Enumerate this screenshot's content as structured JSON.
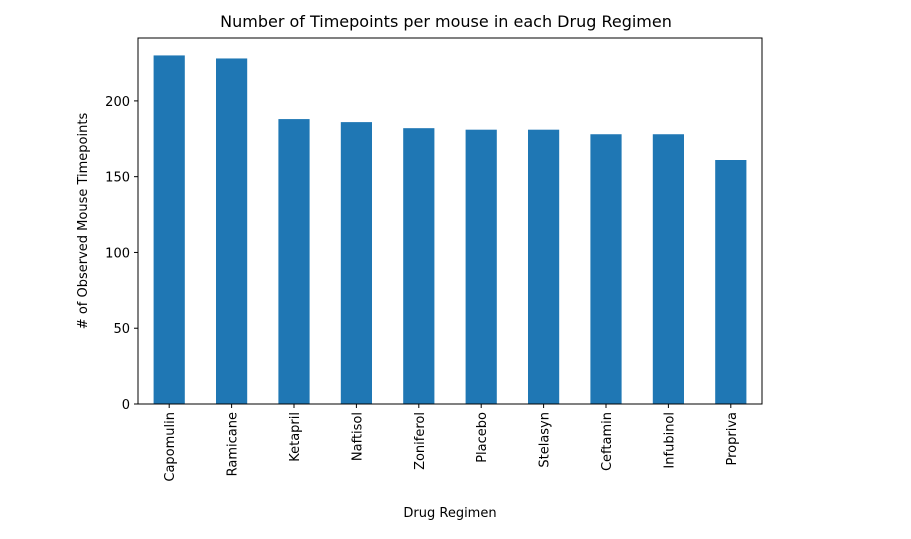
{
  "chart_data": {
    "type": "bar",
    "title": "Number of Timepoints per mouse in each Drug Regimen",
    "xlabel": "Drug Regimen",
    "ylabel": "# of Observed Mouse Timepoints",
    "categories": [
      "Capomulin",
      "Ramicane",
      "Ketapril",
      "Naftisol",
      "Zoniferol",
      "Placebo",
      "Stelasyn",
      "Ceftamin",
      "Infubinol",
      "Propriva"
    ],
    "values": [
      230,
      228,
      188,
      186,
      182,
      181,
      181,
      178,
      178,
      161
    ],
    "ylim": [
      0,
      241.5
    ],
    "yticks": [
      0,
      50,
      100,
      150,
      200
    ],
    "bar_color": "#1f77b4",
    "grid": false,
    "legend": "none"
  }
}
